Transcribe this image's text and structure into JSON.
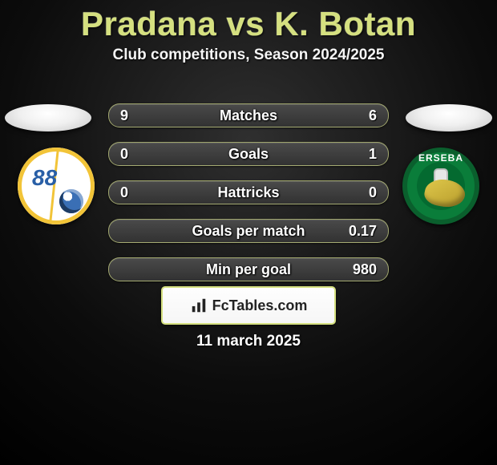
{
  "title": "Pradana vs K. Botan",
  "subtitle": "Club competitions, Season 2024/2025",
  "date": "11 march 2025",
  "brand": "FcTables.com",
  "title_color": "#d5e080",
  "row_border_color": "rgba(215,225,138,.65)",
  "fill_gradient": [
    "#dce69a",
    "#bfca6a"
  ],
  "crest_left": {
    "ring_color": "#f2c438",
    "number": "88",
    "number_color": "#295fa6"
  },
  "crest_right": {
    "ring_bg": "#0a7d3a",
    "ring_border": "#0a5f2d",
    "text": "ERSEBA",
    "inner_bg": "#046a30"
  },
  "rows": [
    {
      "label": "Matches",
      "left": "9",
      "right": "6",
      "fillL": 0,
      "fillR": 0
    },
    {
      "label": "Goals",
      "left": "0",
      "right": "1",
      "fillL": 0,
      "fillR": 0
    },
    {
      "label": "Hattricks",
      "left": "0",
      "right": "0",
      "fillL": 0,
      "fillR": 0
    },
    {
      "label": "Goals per match",
      "left": "",
      "right": "0.17",
      "fillL": 0,
      "fillR": 0
    },
    {
      "label": "Min per goal",
      "left": "",
      "right": "980",
      "fillL": 0,
      "fillR": 0
    }
  ]
}
